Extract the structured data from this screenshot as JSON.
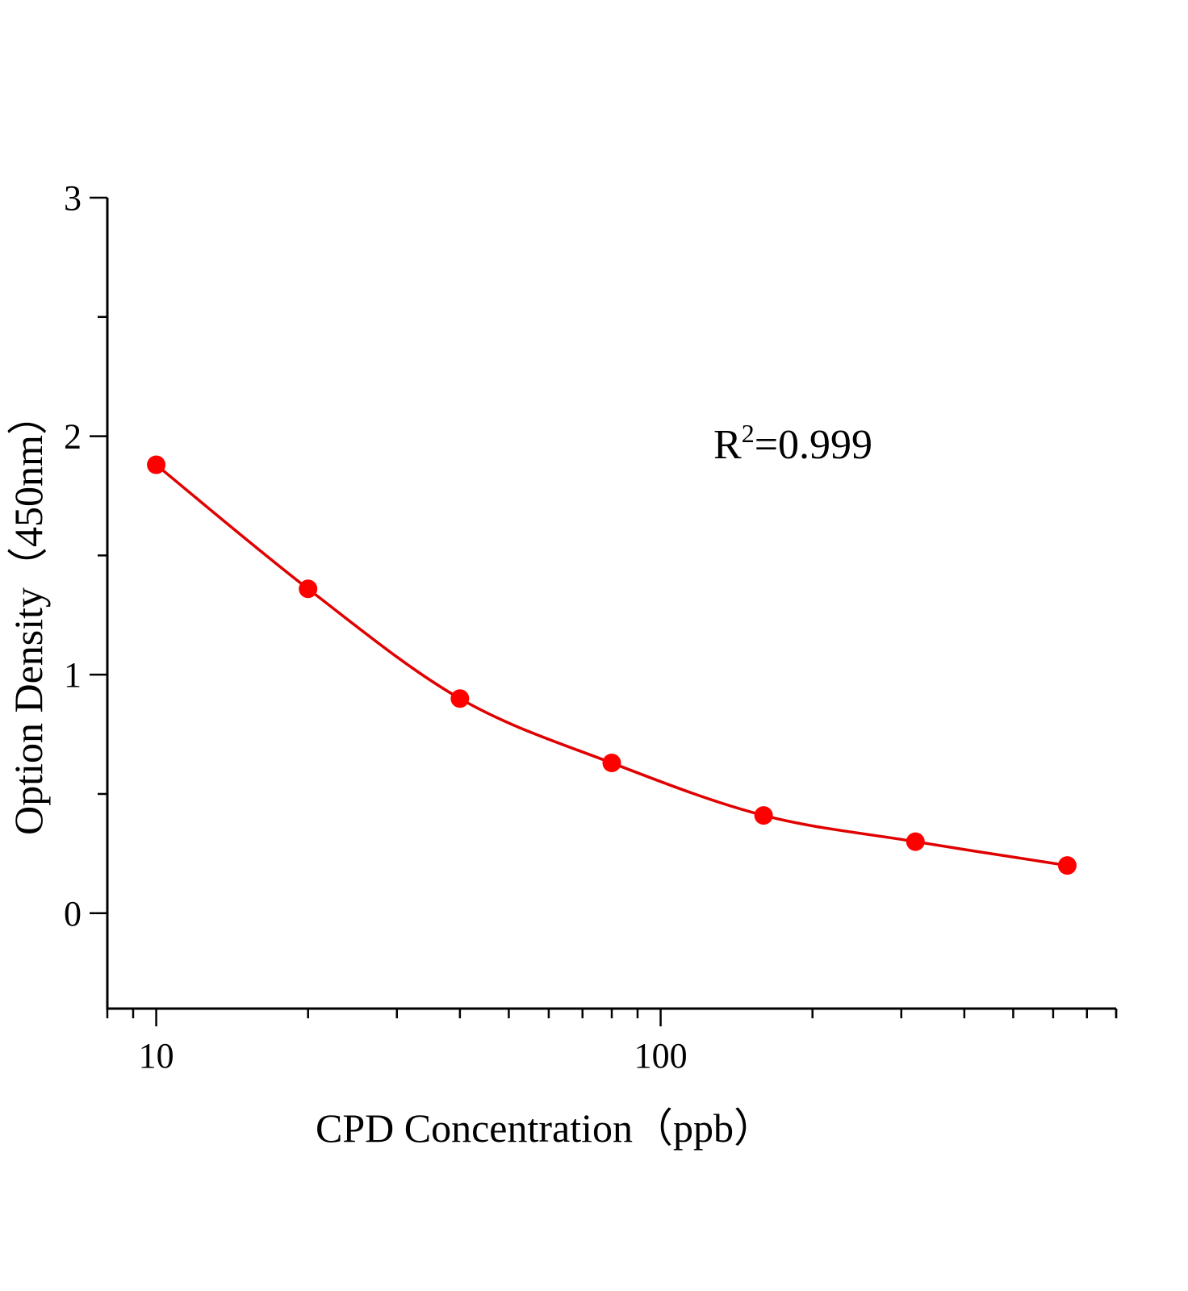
{
  "chart_data": {
    "type": "scatter",
    "title": "",
    "xlabel": "CPD  Concentration（ppb）",
    "ylabel": "Option Density（450nm）",
    "xscale": "log",
    "xlim": [
      8,
      800
    ],
    "ylim": [
      -0.4,
      3
    ],
    "x_ticks": [
      10,
      100
    ],
    "x_tick_labels": [
      "10",
      "100"
    ],
    "y_ticks": [
      0,
      1,
      2,
      3
    ],
    "y_tick_labels": [
      "0",
      "1",
      "2",
      "3"
    ],
    "grid": false,
    "annotation": {
      "base": "R",
      "sup": "2",
      "rest": "=0.999"
    },
    "series": [
      {
        "x": [
          10,
          20,
          40,
          80,
          160,
          320,
          640
        ],
        "y": [
          1.88,
          1.36,
          0.9,
          0.63,
          0.41,
          0.3,
          0.2
        ],
        "color": "#ff0000",
        "marker": "circle",
        "fit_line": true,
        "line_color": "#e00000"
      }
    ]
  }
}
